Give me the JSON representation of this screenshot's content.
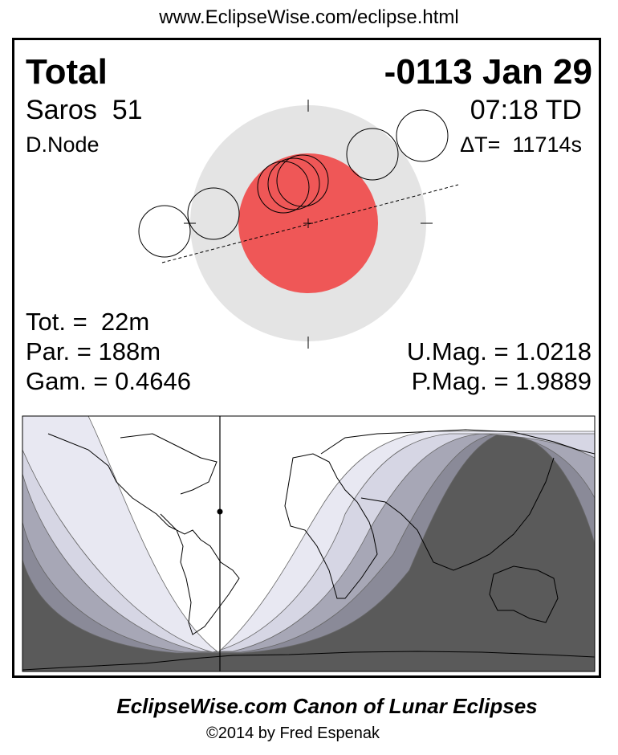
{
  "header": {
    "url": "www.EclipseWise.com/eclipse.html"
  },
  "eclipse": {
    "type": "Total",
    "date": "-0113 Jan 29",
    "saros": "Saros  51",
    "time": "07:18 TD",
    "node": "D.Node",
    "delta_t": "ΔT=  11714s",
    "totality": "Tot. =  22m",
    "partial": "Par. = 188m",
    "gamma": "Gam. = 0.4646",
    "umbral_mag": "U.Mag. = 1.0218",
    "penumbral_mag": "P.Mag. = 1.9889"
  },
  "colors": {
    "umbra": "#ef5757",
    "penumbra": "#e4e4e4",
    "map_dark": "#5a5a5a",
    "map_band_4": "#8a8a98",
    "map_band_3": "#a7a7b6",
    "map_band_2": "#d6d6e4",
    "map_band_1": "#e8e8f2"
  },
  "footer": {
    "title": "EclipseWise.com Canon of Lunar Eclipses",
    "copyright": "©2014 by Fred Espenak"
  }
}
